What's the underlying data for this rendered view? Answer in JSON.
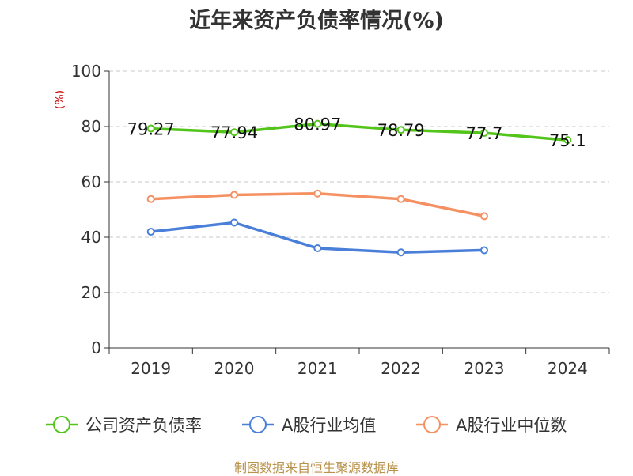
{
  "title": "近年来资产负债率情况(%)",
  "source": "制图数据来自恒生聚源数据库",
  "chart_data": {
    "type": "line",
    "title": "近年来资产负债率情况(%)",
    "ylabel": "(%)",
    "xlabel": "",
    "ylim": [
      0,
      100
    ],
    "yticks": [
      0,
      20,
      40,
      60,
      80,
      100
    ],
    "categories": [
      "2019",
      "2020",
      "2021",
      "2022",
      "2023",
      "2024"
    ],
    "grid": true,
    "legend_position": "bottom",
    "series": [
      {
        "name": "公司资产负债率",
        "color": "#52c41a",
        "values": [
          79.27,
          77.94,
          80.97,
          78.79,
          77.7,
          75.1
        ],
        "labels": [
          "79.27",
          "77.94",
          "80.97",
          "78.79",
          "77.7",
          "75.1"
        ]
      },
      {
        "name": "A股行业均值",
        "color": "#4a7fd9",
        "values": [
          42.0,
          45.3,
          36.0,
          34.5,
          35.3,
          null
        ]
      },
      {
        "name": "A股行业中位数",
        "color": "#f59062",
        "values": [
          53.8,
          55.3,
          55.8,
          53.8,
          47.6,
          null
        ]
      }
    ]
  }
}
